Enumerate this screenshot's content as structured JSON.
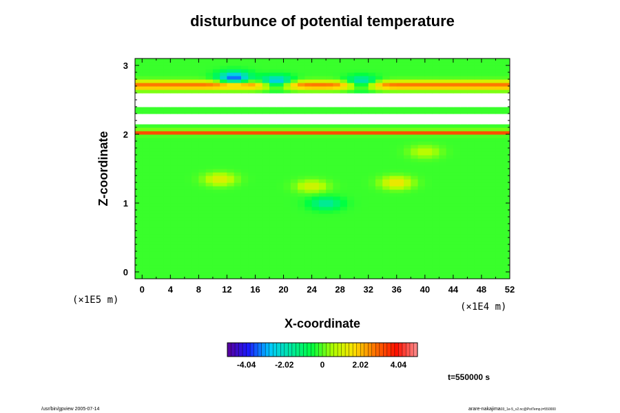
{
  "chart_data": {
    "type": "heatmap",
    "title": "disturbunce of potential temperature",
    "xlabel": "X-coordinate",
    "ylabel": "Z-coordinate",
    "x_unit": "(×1E4 m)",
    "y_unit": "(×1E5 m)",
    "xlim": [
      -1,
      52
    ],
    "ylim": [
      -0.1,
      3.1
    ],
    "x_ticks": [
      0,
      4,
      8,
      12,
      16,
      20,
      24,
      28,
      32,
      36,
      40,
      44,
      48,
      52
    ],
    "y_ticks": [
      0,
      1,
      2,
      3
    ],
    "colorbar": {
      "min": -5.05,
      "max": 5.05,
      "tick_values": [
        -4.04,
        -2.02,
        0,
        2.02,
        4.04
      ],
      "tick_labels": [
        "-4.04",
        "-2.02",
        "0",
        "2.02",
        "4.04"
      ],
      "colormap": [
        "#5a009a",
        "#1a1aff",
        "#00c8ff",
        "#00e8a0",
        "#00ff40",
        "#b0ff00",
        "#ffe000",
        "#ff7000",
        "#ff1000",
        "#ff9090"
      ]
    },
    "background_value": -0.2,
    "features": [
      {
        "kind": "layer",
        "z": [
          2.65,
          2.78
        ],
        "value": 3.0
      },
      {
        "kind": "layer",
        "z": [
          2.0,
          2.06
        ],
        "value": 3.5
      },
      {
        "kind": "blob",
        "x": 13,
        "z": 2.82,
        "value": -3.5
      },
      {
        "kind": "blob",
        "x": 19,
        "z": 2.75,
        "value": -4.0
      },
      {
        "kind": "blob",
        "x": 31,
        "z": 2.74,
        "value": -3.5
      },
      {
        "kind": "blob",
        "x": 11,
        "z": 1.35,
        "value": 1.5
      },
      {
        "kind": "blob",
        "x": 24,
        "z": 1.25,
        "value": 1.3
      },
      {
        "kind": "blob",
        "x": 36,
        "z": 1.3,
        "value": 1.8
      },
      {
        "kind": "blob",
        "x": 40,
        "z": 1.75,
        "value": 1.0
      },
      {
        "kind": "blob",
        "x": 26,
        "z": 1.0,
        "value": -1.5
      }
    ],
    "missing_bands": [
      [
        2.15,
        2.28
      ],
      [
        2.4,
        2.62
      ]
    ],
    "time_label": "t=550000 s"
  },
  "footer": {
    "left": "/usr/bin/gpview 2005-07-14",
    "right_main": "arare-nakajima",
    "right_sub": "03_1e-5_v2.nc@PotTemp,t=550000"
  },
  "colors": {
    "missing": "#ffffff",
    "frame": "#000000"
  }
}
